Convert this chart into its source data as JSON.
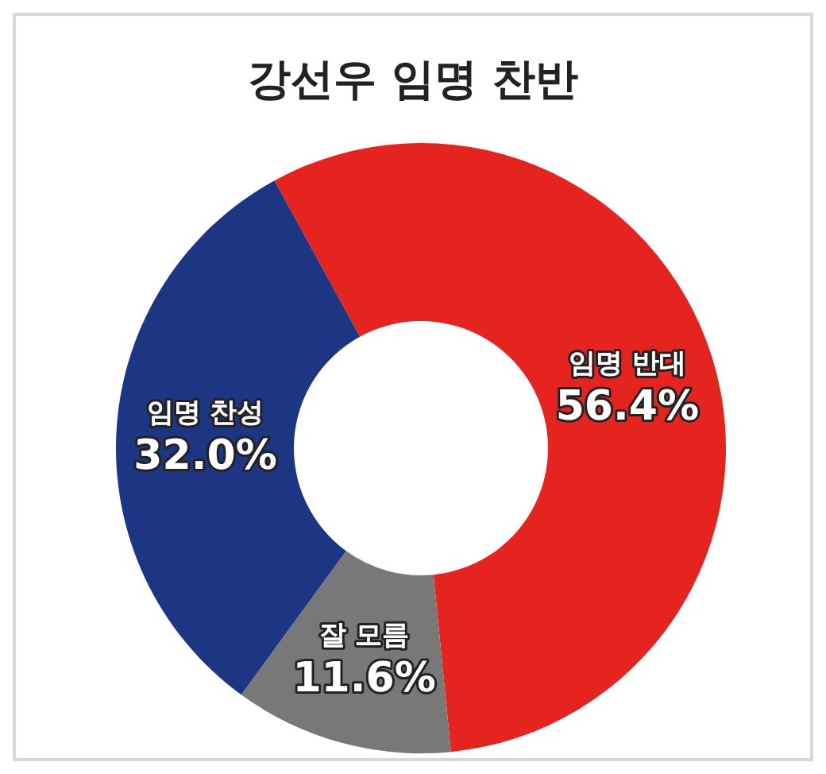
{
  "chart_data": {
    "type": "donut",
    "title": "강선우 임명 찬반",
    "categories": [
      "임명 반대",
      "잘 모름",
      "임명 찬성"
    ],
    "values": [
      56.4,
      11.6,
      32.0
    ],
    "value_labels": [
      "56.4%",
      "11.6%",
      "32.0%"
    ],
    "colors": [
      "#e52420",
      "#787878",
      "#1d3683"
    ]
  }
}
